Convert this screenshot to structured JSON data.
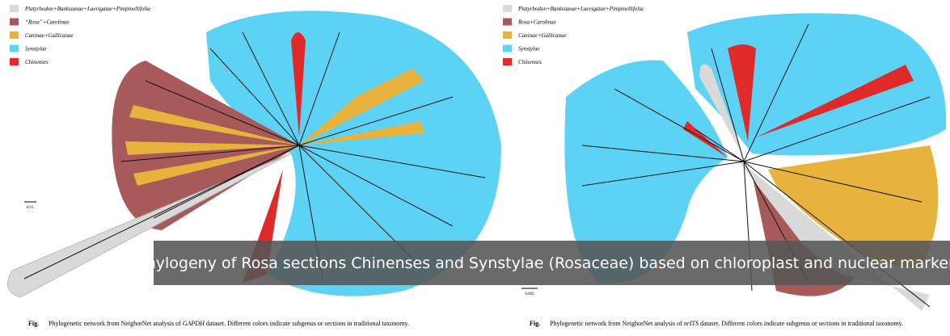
{
  "left_figure": {
    "legend": [
      {
        "label": "Platyrhodon+Banksianae+Laevigatae+Pimpinellifolia",
        "color": "#d9d9d9"
      },
      {
        "label": "“Rosa”+Carolinae",
        "color": "#a85a5a"
      },
      {
        "label": "Caninae+Gallicanae",
        "color": "#e8b33c"
      },
      {
        "label": "Synstylae",
        "color": "#5cd2f5"
      },
      {
        "label": "Chinenses",
        "color": "#e02a2a"
      }
    ],
    "scale_label": "0.01",
    "caption": {
      "label": "Fig.",
      "before": "Phylogenetic network from NeighorNet analysis of ",
      "italic": "GAPDH",
      "after": " dataset. Different colors indicate subgenus or sections in traditional taxonomy."
    }
  },
  "right_figure": {
    "legend": [
      {
        "label": "Platyrhodon+Banksianae+Laevigatae+Pimpinellifolia",
        "color": "#d9d9d9"
      },
      {
        "label": "Rosa+Carolinae",
        "color": "#a85a5a"
      },
      {
        "label": "Caninae+Gallicanae",
        "color": "#e8b33c"
      },
      {
        "label": "Synstylae",
        "color": "#5cd2f5"
      },
      {
        "label": "Chinenses",
        "color": "#e02a2a"
      }
    ],
    "scale_label": "0.002",
    "caption": {
      "label": "Fig.",
      "before": "Phylogenetic network from NeighorNet analysis of ",
      "italic": "nrITS",
      "after": " dataset. Different colors indicate subgenus or sections in traditional taxonomy."
    }
  },
  "banner": {
    "title": "Phylogeny of Rosa sections Chinenses and Synstylae (Rosaceae) based on chloroplast and nuclear markers"
  }
}
